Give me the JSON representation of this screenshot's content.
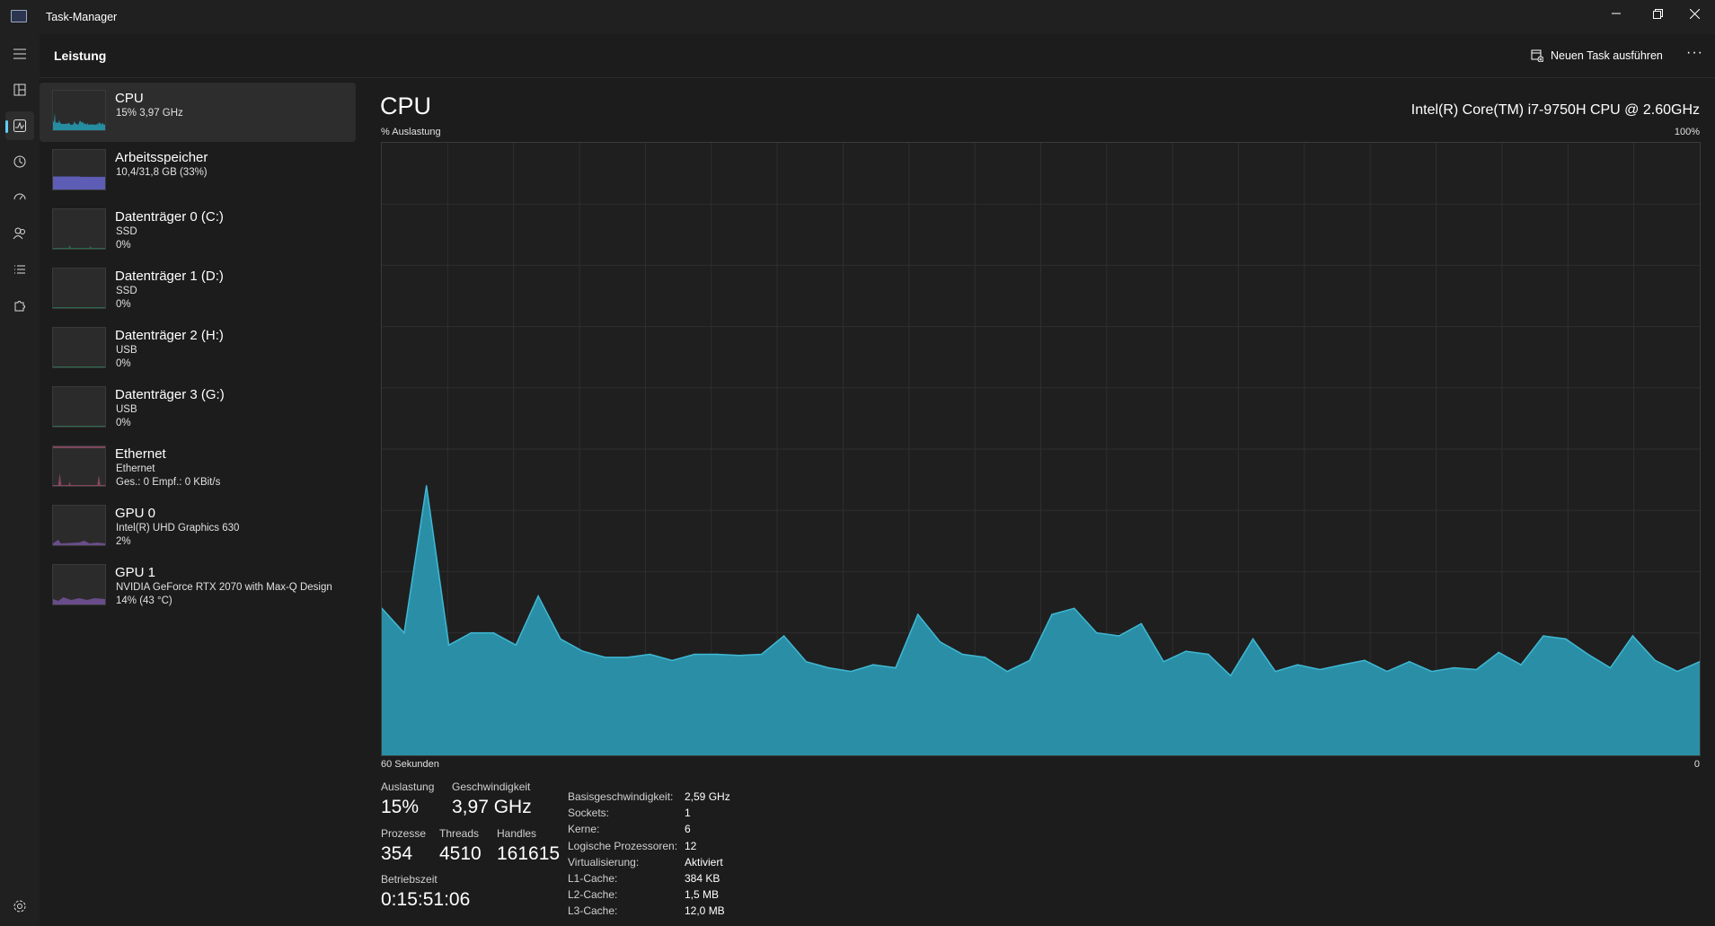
{
  "window": {
    "title": "Task-Manager"
  },
  "header": {
    "title": "Leistung",
    "run_task_label": "Neuen Task ausführen",
    "more_label": "···"
  },
  "rail": {
    "items": [
      "hamburger-menu",
      "processes",
      "performance",
      "app-history",
      "startup-apps",
      "users",
      "details",
      "services"
    ],
    "active": "performance",
    "settings": "settings"
  },
  "sidebar": {
    "items": [
      {
        "title": "CPU",
        "sub1": "15% 3,97 GHz",
        "sub2": "",
        "color": "#25a6bf"
      },
      {
        "title": "Arbeitsspeicher",
        "sub1": "10,4/31,8 GB (33%)",
        "sub2": "",
        "color": "#6a6ad8"
      },
      {
        "title": "Datenträger 0 (C:)",
        "sub1": "SSD",
        "sub2": "0%",
        "color": "#2e9c6b"
      },
      {
        "title": "Datenträger 1 (D:)",
        "sub1": "SSD",
        "sub2": "0%",
        "color": "#2e9c6b"
      },
      {
        "title": "Datenträger 2 (H:)",
        "sub1": "USB",
        "sub2": "0%",
        "color": "#2e9c6b"
      },
      {
        "title": "Datenträger 3 (G:)",
        "sub1": "USB",
        "sub2": "0%",
        "color": "#2e9c6b"
      },
      {
        "title": "Ethernet",
        "sub1": "Ethernet",
        "sub2": "Ges.: 0 Empf.: 0 KBit/s",
        "color": "#d15c8c"
      },
      {
        "title": "GPU 0",
        "sub1": "Intel(R) UHD Graphics 630",
        "sub2": "2%",
        "color": "#9a6ad8"
      },
      {
        "title": "GPU 1",
        "sub1": "NVIDIA GeForce RTX 2070 with Max-Q Design",
        "sub2": "14% (43 °C)",
        "color": "#9a6ad8"
      }
    ]
  },
  "main": {
    "title": "CPU",
    "cpu_model": "Intel(R) Core(TM) i7-9750H CPU @ 2.60GHz",
    "y_label": "% Auslastung",
    "y_max_label": "100%",
    "x_left_label": "60 Sekunden",
    "x_right_label": "0",
    "graph_color": "#2a8fa6",
    "graph_line_color": "#3fb8d4"
  },
  "chart_data": {
    "type": "area",
    "ylabel": "% Auslastung",
    "xlabel": "60 Sekunden",
    "ylim": [
      0,
      100
    ],
    "xlim": [
      60,
      0
    ],
    "grid": true,
    "values": [
      24,
      20,
      44,
      18,
      20,
      20,
      18,
      26,
      19,
      17,
      16,
      16,
      16.5,
      15.5,
      16.5,
      16.5,
      16.3,
      16.5,
      19.5,
      15.3,
      14.3,
      13.7,
      14.8,
      14.3,
      23,
      18.5,
      16.5,
      16,
      13.7,
      15.5,
      23,
      24,
      20,
      19.5,
      21.5,
      15.3,
      17,
      16.5,
      13,
      19,
      13.7,
      14.8,
      14,
      14.8,
      15.5,
      13.7,
      15.3,
      13.7,
      14.3,
      14,
      16.8,
      14.8,
      19.5,
      19,
      16.5,
      14.3,
      19.5,
      15.5,
      13.7,
      15.3
    ]
  },
  "stats": {
    "auslastung_label": "Auslastung",
    "auslastung": "15%",
    "geschwindigkeit_label": "Geschwindigkeit",
    "geschwindigkeit": "3,97 GHz",
    "prozesse_label": "Prozesse",
    "prozesse": "354",
    "threads_label": "Threads",
    "threads": "4510",
    "handles_label": "Handles",
    "handles": "161615",
    "betriebszeit_label": "Betriebszeit",
    "betriebszeit": "0:15:51:06"
  },
  "details": [
    {
      "label": "Basisgeschwindigkeit:",
      "value": "2,59 GHz"
    },
    {
      "label": "Sockets:",
      "value": "1"
    },
    {
      "label": "Kerne:",
      "value": "6"
    },
    {
      "label": "Logische Prozessoren:",
      "value": "12"
    },
    {
      "label": "Virtualisierung:",
      "value": "Aktiviert"
    },
    {
      "label": "L1-Cache:",
      "value": "384 KB"
    },
    {
      "label": "L2-Cache:",
      "value": "1,5 MB"
    },
    {
      "label": "L3-Cache:",
      "value": "12,0 MB"
    }
  ]
}
